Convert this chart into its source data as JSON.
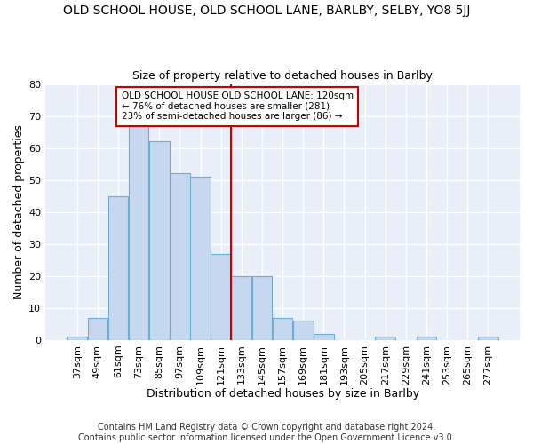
{
  "title1": "OLD SCHOOL HOUSE, OLD SCHOOL LANE, BARLBY, SELBY, YO8 5JJ",
  "title2": "Size of property relative to detached houses in Barlby",
  "xlabel": "Distribution of detached houses by size in Barlby",
  "ylabel": "Number of detached properties",
  "footer_line1": "Contains HM Land Registry data © Crown copyright and database right 2024.",
  "footer_line2": "Contains public sector information licensed under the Open Government Licence v3.0.",
  "categories": [
    "37sqm",
    "49sqm",
    "61sqm",
    "73sqm",
    "85sqm",
    "97sqm",
    "109sqm",
    "121sqm",
    "133sqm",
    "145sqm",
    "157sqm",
    "169sqm",
    "181sqm",
    "193sqm",
    "205sqm",
    "217sqm",
    "229sqm",
    "241sqm",
    "253sqm",
    "265sqm",
    "277sqm"
  ],
  "values": [
    1,
    7,
    45,
    67,
    62,
    52,
    51,
    27,
    20,
    20,
    7,
    6,
    2,
    0,
    0,
    1,
    0,
    1,
    0,
    0,
    1
  ],
  "bar_color": "#C5D8EF",
  "bar_edge_color": "#6BAED6",
  "vline_color": "#CC0000",
  "vline_x_index": 7.5,
  "annotation_text_line1": "OLD SCHOOL HOUSE OLD SCHOOL LANE: 120sqm",
  "annotation_text_line2": "← 76% of detached houses are smaller (281)",
  "annotation_text_line3": "23% of semi-detached houses are larger (86) →",
  "annotation_box_color": "#ffffff",
  "annotation_box_edge": "#CC0000",
  "ylim": [
    0,
    80
  ],
  "yticks": [
    0,
    10,
    20,
    30,
    40,
    50,
    60,
    70,
    80
  ],
  "bg_color": "#E8EFF8",
  "grid_color": "#ffffff",
  "title1_fontsize": 10,
  "title2_fontsize": 9,
  "xlabel_fontsize": 9,
  "ylabel_fontsize": 9,
  "tick_fontsize": 8,
  "annot_fontsize": 7.5,
  "footer_fontsize": 7
}
